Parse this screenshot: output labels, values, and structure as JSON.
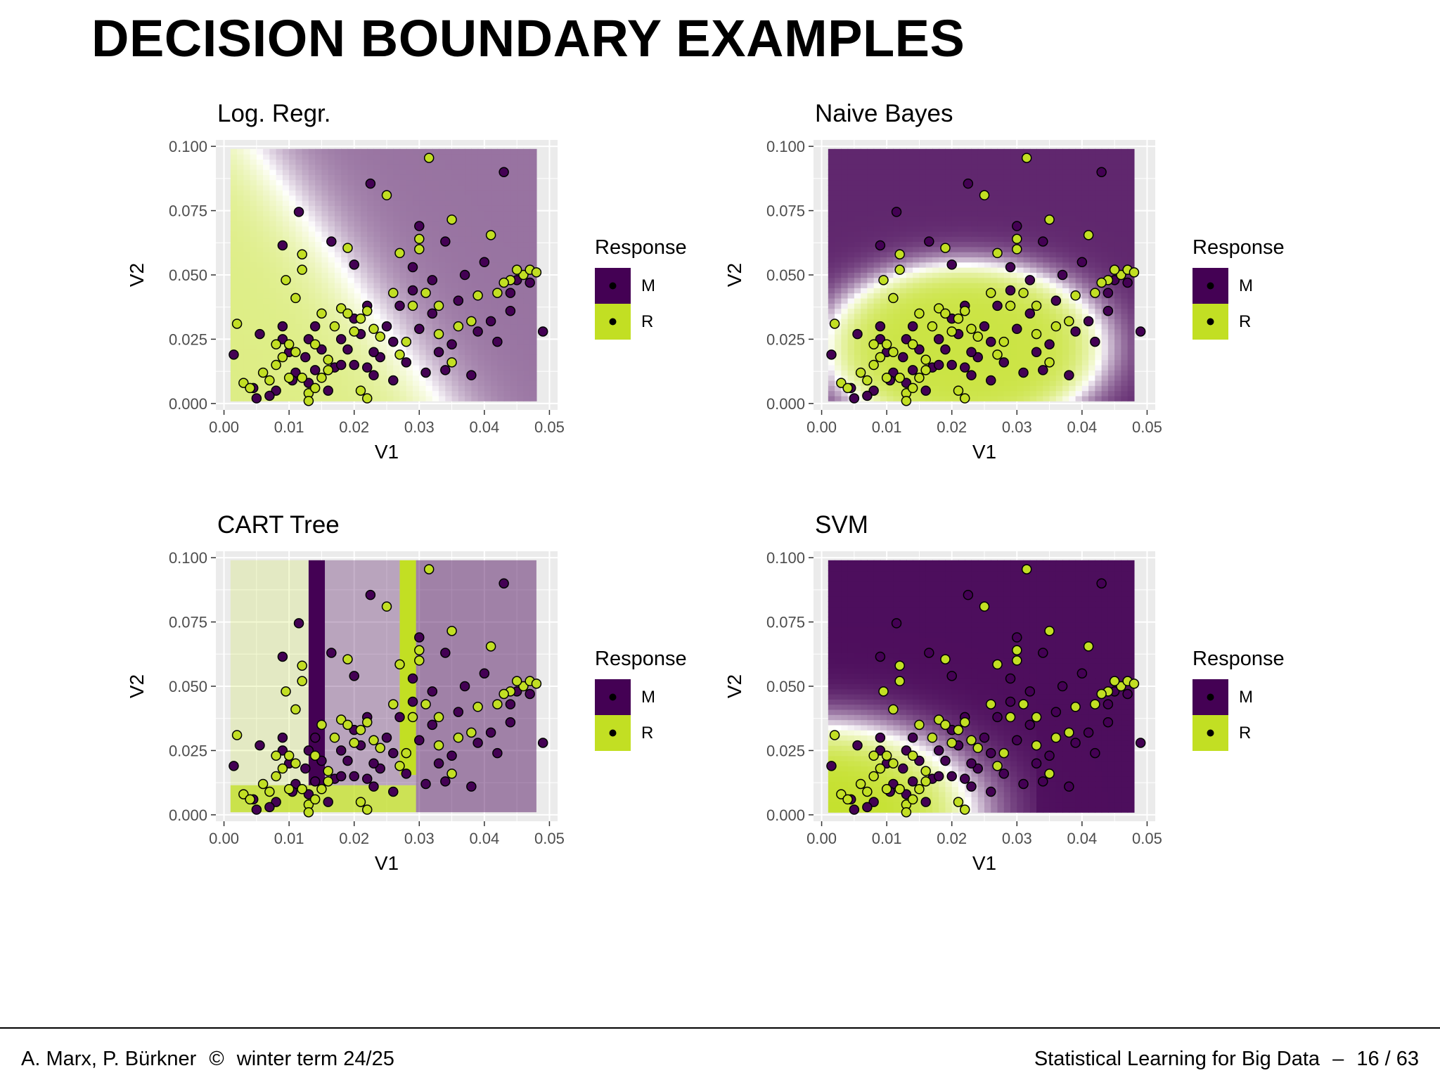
{
  "slide": {
    "title": "DECISION BOUNDARY EXAMPLES"
  },
  "footer": {
    "authors": "A. Marx, P. Bürkner",
    "copyright_symbol": "©",
    "term": "winter term 24/25",
    "course": "Statistical Learning for Big Data",
    "dash": "–",
    "page": "16 / 63"
  },
  "colors": {
    "class_M": "#440154",
    "class_R": "#C2DF23",
    "panel_background": "#EBEBEB",
    "gridline": "#FFFFFF"
  },
  "chart_data": [
    {
      "type": "scatter",
      "title": "Log. Regr.",
      "xlabel": "V1",
      "ylabel": "V2",
      "xlim": [
        0,
        0.05
      ],
      "ylim": [
        0,
        0.1
      ],
      "xticks": [
        "0.00",
        "0.01",
        "0.02",
        "0.03",
        "0.04",
        "0.05"
      ],
      "yticks": [
        "0.000",
        "0.025",
        "0.050",
        "0.075",
        "0.100"
      ],
      "background": "prediction surface, R (green) region at low V1, M (purple) region at high V1",
      "legend": {
        "title": "Response",
        "position": "right",
        "entries": [
          "M",
          "R"
        ]
      },
      "series_ref": "points"
    },
    {
      "type": "scatter",
      "title": "Naive Bayes",
      "xlabel": "V1",
      "ylabel": "V2",
      "xlim": [
        0,
        0.05
      ],
      "ylim": [
        0,
        0.1
      ],
      "xticks": [
        "0.00",
        "0.01",
        "0.02",
        "0.03",
        "0.04",
        "0.05"
      ],
      "yticks": [
        "0.000",
        "0.025",
        "0.050",
        "0.075",
        "0.100"
      ],
      "background": "prediction surface, R (green) region in the lower-middle, M (purple) at top and right",
      "legend": {
        "title": "Response",
        "position": "right",
        "entries": [
          "M",
          "R"
        ]
      },
      "series_ref": "points"
    },
    {
      "type": "scatter",
      "title": "CART Tree",
      "xlabel": "V1",
      "ylabel": "V2",
      "xlim": [
        0,
        0.05
      ],
      "ylim": [
        0,
        0.1
      ],
      "xticks": [
        "0.00",
        "0.01",
        "0.02",
        "0.03",
        "0.04",
        "0.05"
      ],
      "yticks": [
        "0.000",
        "0.025",
        "0.050",
        "0.075",
        "0.100"
      ],
      "background": "axis-aligned rectangular prediction regions",
      "legend": {
        "title": "Response",
        "position": "right",
        "entries": [
          "M",
          "R"
        ]
      },
      "series_ref": "points"
    },
    {
      "type": "scatter",
      "title": "SVM",
      "xlabel": "V1",
      "ylabel": "V2",
      "xlim": [
        0,
        0.05
      ],
      "ylim": [
        0,
        0.1
      ],
      "xticks": [
        "0.00",
        "0.01",
        "0.02",
        "0.03",
        "0.04",
        "0.05"
      ],
      "yticks": [
        "0.000",
        "0.025",
        "0.050",
        "0.075",
        "0.100"
      ],
      "background": "prediction surface, R (green) region at bottom-left, M (purple) elsewhere",
      "legend": {
        "title": "Response",
        "position": "right",
        "entries": [
          "M",
          "R"
        ]
      },
      "series_ref": "points"
    }
  ],
  "points": {
    "M": [
      [
        0.0115,
        0.0745
      ],
      [
        0.0225,
        0.0855
      ],
      [
        0.043,
        0.09
      ],
      [
        0.049,
        0.028
      ],
      [
        0.0015,
        0.019
      ],
      [
        0.0055,
        0.027
      ],
      [
        0.0045,
        0.006
      ],
      [
        0.005,
        0.002
      ],
      [
        0.009,
        0.0615
      ],
      [
        0.0165,
        0.063
      ],
      [
        0.02,
        0.054
      ],
      [
        0.03,
        0.069
      ],
      [
        0.034,
        0.063
      ],
      [
        0.04,
        0.055
      ],
      [
        0.029,
        0.053
      ],
      [
        0.032,
        0.048
      ],
      [
        0.037,
        0.05
      ],
      [
        0.044,
        0.043
      ],
      [
        0.047,
        0.047
      ],
      [
        0.045,
        0.048
      ],
      [
        0.039,
        0.028
      ],
      [
        0.041,
        0.032
      ],
      [
        0.038,
        0.011
      ],
      [
        0.034,
        0.013
      ],
      [
        0.031,
        0.012
      ],
      [
        0.035,
        0.023
      ],
      [
        0.033,
        0.02
      ],
      [
        0.028,
        0.016
      ],
      [
        0.026,
        0.009
      ],
      [
        0.023,
        0.011
      ],
      [
        0.02,
        0.015
      ],
      [
        0.019,
        0.021
      ],
      [
        0.018,
        0.025
      ],
      [
        0.021,
        0.027
      ],
      [
        0.025,
        0.03
      ],
      [
        0.027,
        0.038
      ],
      [
        0.015,
        0.021
      ],
      [
        0.014,
        0.03
      ],
      [
        0.013,
        0.025
      ],
      [
        0.0125,
        0.018
      ],
      [
        0.011,
        0.012
      ],
      [
        0.01,
        0.02
      ],
      [
        0.009,
        0.03
      ],
      [
        0.009,
        0.025
      ],
      [
        0.008,
        0.005
      ],
      [
        0.007,
        0.003
      ],
      [
        0.013,
        0.008
      ],
      [
        0.016,
        0.005
      ],
      [
        0.017,
        0.014
      ],
      [
        0.022,
        0.014
      ],
      [
        0.024,
        0.018
      ],
      [
        0.026,
        0.024
      ],
      [
        0.03,
        0.029
      ],
      [
        0.029,
        0.044
      ],
      [
        0.022,
        0.038
      ],
      [
        0.02,
        0.033
      ],
      [
        0.036,
        0.04
      ],
      [
        0.042,
        0.024
      ],
      [
        0.044,
        0.036
      ],
      [
        0.032,
        0.035
      ],
      [
        0.023,
        0.02
      ],
      [
        0.018,
        0.015
      ],
      [
        0.014,
        0.013
      ],
      [
        0.0105,
        0.009
      ]
    ],
    "R": [
      [
        0.0315,
        0.0955
      ],
      [
        0.025,
        0.081
      ],
      [
        0.035,
        0.0715
      ],
      [
        0.041,
        0.0655
      ],
      [
        0.019,
        0.0605
      ],
      [
        0.03,
        0.064
      ],
      [
        0.027,
        0.0585
      ],
      [
        0.012,
        0.058
      ],
      [
        0.012,
        0.052
      ],
      [
        0.0095,
        0.048
      ],
      [
        0.011,
        0.041
      ],
      [
        0.002,
        0.031
      ],
      [
        0.003,
        0.008
      ],
      [
        0.004,
        0.006
      ],
      [
        0.007,
        0.009
      ],
      [
        0.006,
        0.012
      ],
      [
        0.008,
        0.015
      ],
      [
        0.009,
        0.018
      ],
      [
        0.011,
        0.02
      ],
      [
        0.01,
        0.023
      ],
      [
        0.012,
        0.01
      ],
      [
        0.013,
        0.004
      ],
      [
        0.013,
        0.001
      ],
      [
        0.014,
        0.006
      ],
      [
        0.015,
        0.01
      ],
      [
        0.016,
        0.017
      ],
      [
        0.017,
        0.03
      ],
      [
        0.018,
        0.037
      ],
      [
        0.019,
        0.035
      ],
      [
        0.021,
        0.033
      ],
      [
        0.022,
        0.036
      ],
      [
        0.023,
        0.029
      ],
      [
        0.024,
        0.026
      ],
      [
        0.021,
        0.005
      ],
      [
        0.022,
        0.002
      ],
      [
        0.028,
        0.024
      ],
      [
        0.027,
        0.019
      ],
      [
        0.029,
        0.038
      ],
      [
        0.031,
        0.043
      ],
      [
        0.033,
        0.038
      ],
      [
        0.035,
        0.016
      ],
      [
        0.033,
        0.027
      ],
      [
        0.036,
        0.03
      ],
      [
        0.038,
        0.032
      ],
      [
        0.042,
        0.043
      ],
      [
        0.044,
        0.048
      ],
      [
        0.046,
        0.05
      ],
      [
        0.047,
        0.052
      ],
      [
        0.045,
        0.052
      ],
      [
        0.048,
        0.051
      ],
      [
        0.043,
        0.047
      ],
      [
        0.039,
        0.042
      ],
      [
        0.03,
        0.06
      ],
      [
        0.026,
        0.043
      ],
      [
        0.02,
        0.028
      ],
      [
        0.015,
        0.035
      ],
      [
        0.014,
        0.023
      ],
      [
        0.016,
        0.013
      ],
      [
        0.008,
        0.023
      ],
      [
        0.01,
        0.01
      ]
    ]
  }
}
